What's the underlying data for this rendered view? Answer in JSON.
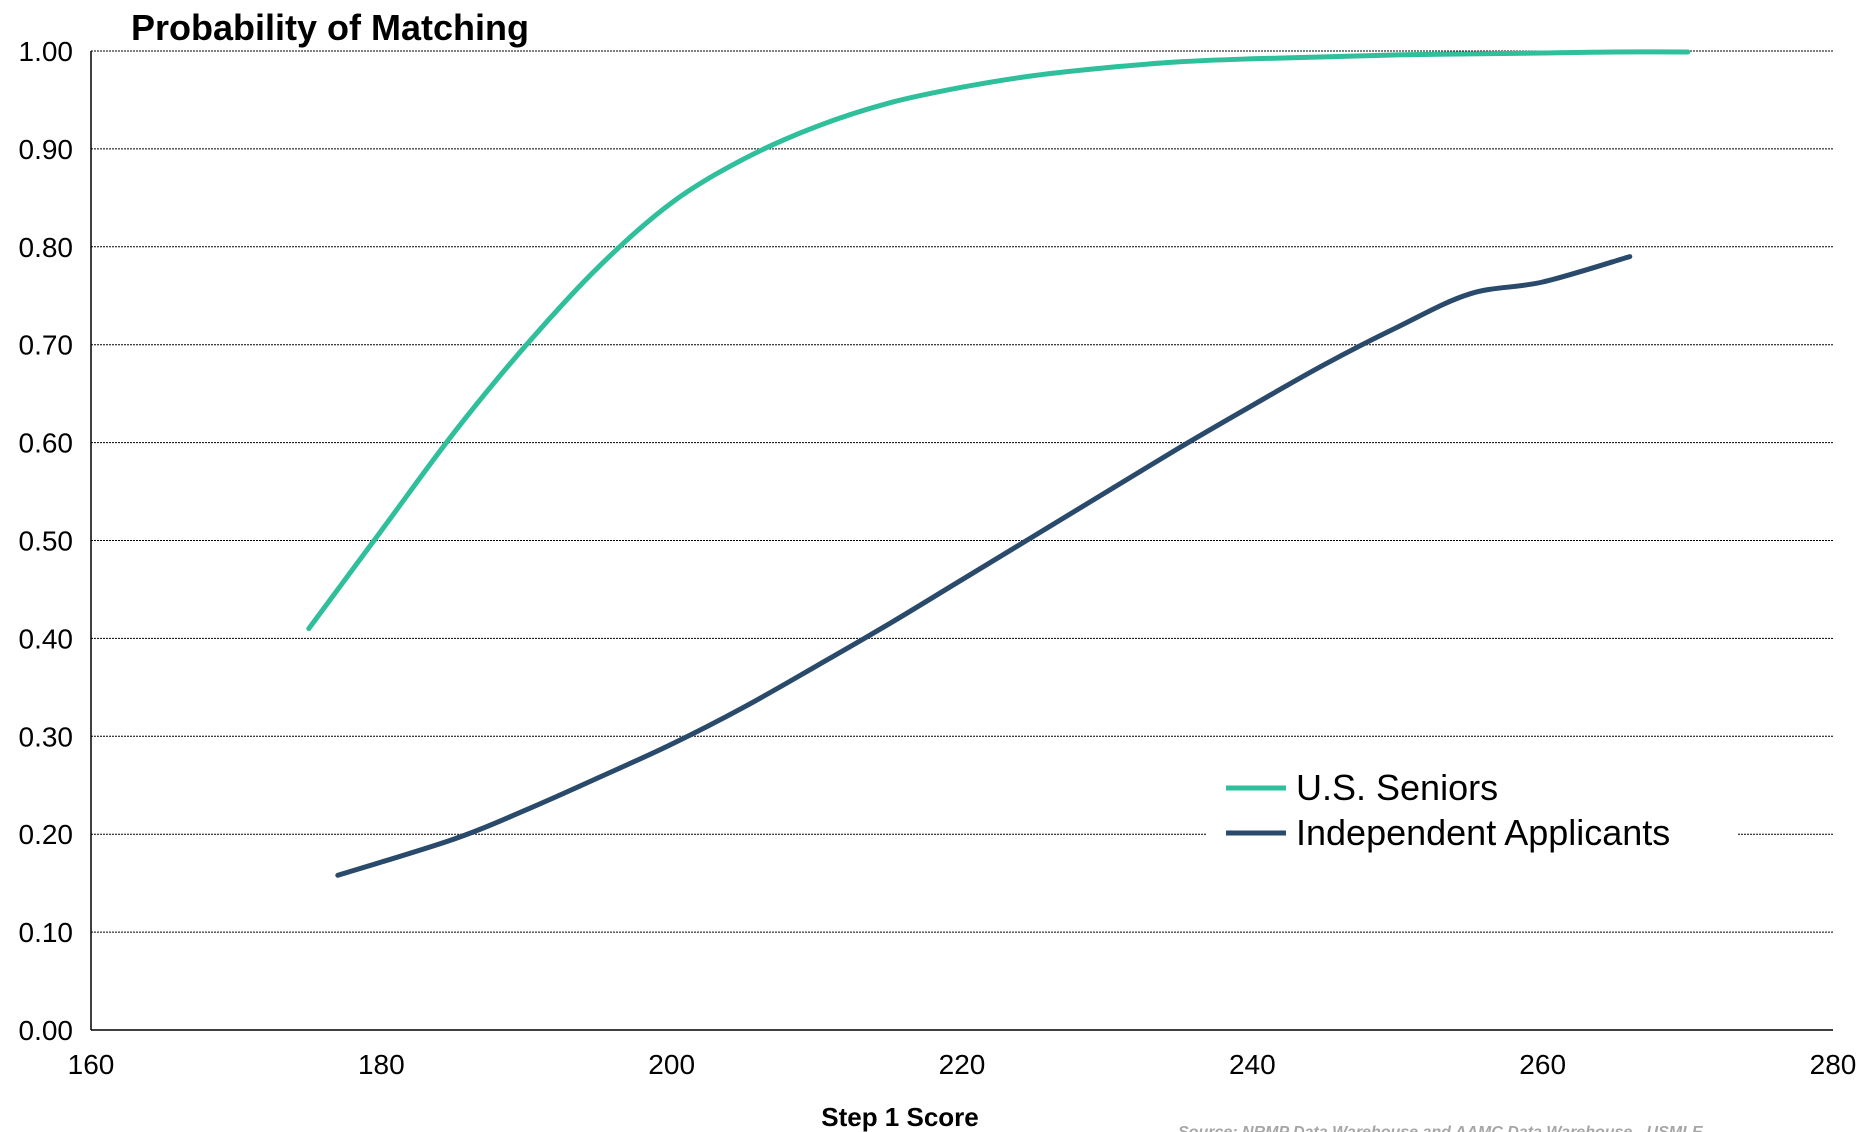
{
  "chart_data": {
    "type": "line",
    "title": "Probability of Matching",
    "xlabel": "Step 1 Score",
    "ylabel": "",
    "xlim": [
      160,
      280
    ],
    "ylim": [
      0,
      1
    ],
    "x_ticks": [
      160,
      180,
      200,
      220,
      240,
      260,
      280
    ],
    "y_ticks": [
      "0.00",
      "0.10",
      "0.20",
      "0.30",
      "0.40",
      "0.50",
      "0.60",
      "0.70",
      "0.80",
      "0.90",
      "1.00"
    ],
    "grid": true,
    "legend_position": "lower-right",
    "series": [
      {
        "name": "U.S. Seniors",
        "color": "#2fbf9b",
        "x": [
          175,
          180,
          185,
          190,
          195,
          200,
          205,
          210,
          215,
          220,
          225,
          230,
          235,
          240,
          245,
          250,
          255,
          260,
          265,
          270
        ],
        "y": [
          0.41,
          0.51,
          0.61,
          0.7,
          0.78,
          0.845,
          0.89,
          0.923,
          0.947,
          0.963,
          0.975,
          0.983,
          0.989,
          0.992,
          0.994,
          0.996,
          0.997,
          0.998,
          0.999,
          0.999
        ]
      },
      {
        "name": "Independent Applicants",
        "color": "#2a4a6b",
        "x": [
          177,
          185,
          190,
          195,
          200,
          205,
          210,
          215,
          220,
          225,
          230,
          235,
          240,
          245,
          250,
          255,
          260,
          266
        ],
        "y": [
          0.158,
          0.195,
          0.225,
          0.258,
          0.292,
          0.33,
          0.372,
          0.415,
          0.46,
          0.505,
          0.55,
          0.595,
          0.638,
          0.68,
          0.718,
          0.752,
          0.764,
          0.79
        ]
      }
    ],
    "source_note": "Source: NRMP Data Warehouse and AAMC Data Warehouse - USMLE"
  }
}
